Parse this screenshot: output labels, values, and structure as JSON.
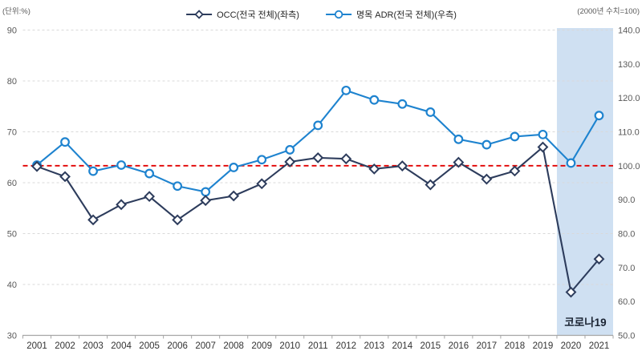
{
  "header": {
    "unit_left": "(단위:%)",
    "unit_right": "(2000년 수치=100)"
  },
  "legend": {
    "items": [
      {
        "label": "OCC(전국 전체)(좌측)",
        "marker": "diamond",
        "color": "#2d3c5c"
      },
      {
        "label": "명목 ADR(전국 전체)(우측)",
        "marker": "circle",
        "color": "#1e83cf"
      }
    ]
  },
  "chart_data": {
    "type": "line",
    "title": "",
    "categories": [
      "2001",
      "2002",
      "2003",
      "2004",
      "2005",
      "2006",
      "2007",
      "2008",
      "2009",
      "2010",
      "2011",
      "2012",
      "2013",
      "2014",
      "2015",
      "2016",
      "2017",
      "2018",
      "2019",
      "2020",
      "2021"
    ],
    "series": [
      {
        "name": "OCC(전국 전체)(좌측)",
        "axis": "left",
        "marker": "diamond",
        "color": "#2d3c5c",
        "values": [
          63.2,
          61.2,
          52.7,
          55.7,
          57.3,
          52.7,
          56.5,
          57.4,
          59.8,
          64.1,
          64.9,
          64.7,
          62.7,
          63.3,
          59.6,
          64.0,
          60.7,
          62.3,
          67.0,
          38.5,
          45.0
        ]
      },
      {
        "name": "명목 ADR(전국 전체)(우측)",
        "axis": "right",
        "marker": "circle",
        "color": "#1e83cf",
        "values": [
          100.2,
          107.0,
          98.4,
          100.2,
          97.7,
          94.0,
          92.3,
          99.5,
          101.8,
          104.7,
          111.9,
          122.2,
          119.4,
          118.2,
          115.8,
          107.8,
          106.2,
          108.6,
          109.2,
          100.8,
          114.8
        ]
      }
    ],
    "left_axis": {
      "min": 30,
      "max": 90,
      "ticks": [
        90,
        80,
        70,
        60,
        50,
        40,
        30
      ],
      "labels": [
        "90",
        "80",
        "70",
        "60",
        "50",
        "40",
        "30"
      ]
    },
    "right_axis": {
      "min": 50,
      "max": 140,
      "ticks": [
        140,
        130,
        120,
        110,
        100,
        90,
        80,
        70,
        60,
        50
      ],
      "labels": [
        "140.0",
        "130.0",
        "120.0",
        "110.0",
        "100.0",
        "90.0",
        "80.0",
        "70.0",
        "60.0",
        "50.0"
      ]
    },
    "ref_line": {
      "axis": "right",
      "value": 100,
      "color": "#e10000",
      "style": "dashed"
    },
    "highlight": {
      "label": "코로나19",
      "start_category": "2020",
      "color": "#cfe0f2"
    },
    "colors": {
      "grid": "#d9d9d9",
      "axis": "#a6a6a6",
      "tick_text": "#595959",
      "year_text": "#333333",
      "marker_fill": "#ffffff"
    },
    "grid": true,
    "legend_position": "top"
  }
}
